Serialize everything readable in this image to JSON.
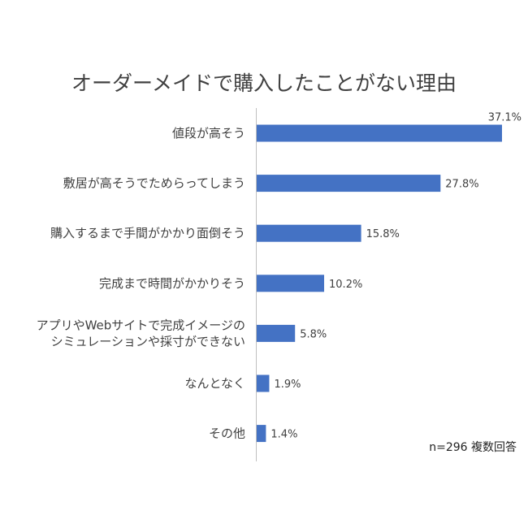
{
  "chart_data": {
    "type": "bar",
    "orientation": "horizontal",
    "title": "オーダーメイドで購入したことがない理由",
    "categories": [
      [
        "値段が高そう"
      ],
      [
        "敷居が高そうでためらってしまう"
      ],
      [
        "購入するまで手間がかかり面倒そう"
      ],
      [
        "完成まで時間がかかりそう"
      ],
      [
        "アプリやWebサイトで完成イメージの",
        "シミュレーションや採寸ができない"
      ],
      [
        "なんとなく"
      ],
      [
        "その他"
      ]
    ],
    "values": [
      37.1,
      27.8,
      15.8,
      10.2,
      5.8,
      1.9,
      1.4
    ],
    "value_labels": [
      "37.1%",
      "27.8%",
      "15.8%",
      "10.2%",
      "5.8%",
      "1.9%",
      "1.4%"
    ],
    "unit": "%",
    "xlim": [
      0,
      40
    ],
    "bar_color": "#4472C4",
    "grid": false,
    "legend": "none"
  },
  "footnote": "n=296 複数回答"
}
